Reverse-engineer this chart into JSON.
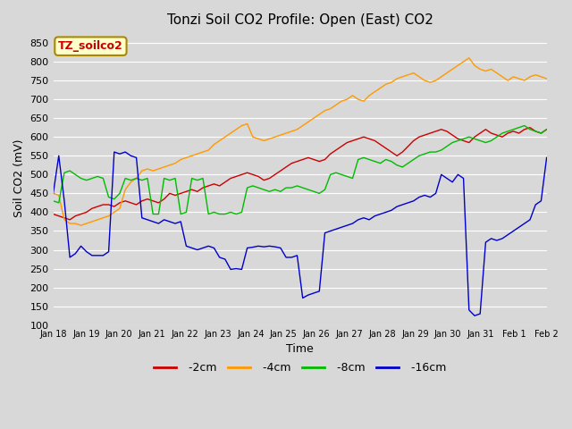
{
  "title": "Tonzi Soil CO2 Profile: Open (East) CO2",
  "xlabel": "Time",
  "ylabel": "Soil CO2 (mV)",
  "ylim": [
    100,
    880
  ],
  "yticks": [
    100,
    150,
    200,
    250,
    300,
    350,
    400,
    450,
    500,
    550,
    600,
    650,
    700,
    750,
    800,
    850
  ],
  "bg_color": "#d8d8d8",
  "plot_bg": "#d8d8d8",
  "grid_color": "#ffffff",
  "line_colors": {
    "-2cm": "#cc0000",
    "-4cm": "#ff9900",
    "-8cm": "#00bb00",
    "-16cm": "#0000cc"
  },
  "legend_label_color": "#cc0000",
  "watermark_text": "TZ_soilco2",
  "watermark_bg": "#ffffcc",
  "watermark_border": "#aa8800",
  "x_labels": [
    "Jan 18",
    "Jan 19",
    "Jan 20",
    "Jan 21",
    "Jan 22",
    "Jan 23",
    "Jan 24",
    "Jan 25",
    "Jan 26",
    "Jan 27",
    "Jan 28",
    "Jan 29",
    "Jan 30",
    "Jan 31",
    "Feb 1",
    "Feb 2"
  ],
  "series_2cm": [
    395,
    390,
    385,
    380,
    390,
    395,
    400,
    410,
    415,
    420,
    420,
    415,
    425,
    430,
    425,
    420,
    430,
    435,
    430,
    425,
    435,
    450,
    445,
    450,
    455,
    460,
    455,
    465,
    470,
    475,
    470,
    480,
    490,
    495,
    500,
    505,
    500,
    495,
    485,
    490,
    500,
    510,
    520,
    530,
    535,
    540,
    545,
    540,
    535,
    540,
    555,
    565,
    575,
    585,
    590,
    595,
    600,
    595,
    590,
    580,
    570,
    560,
    550,
    560,
    575,
    590,
    600,
    605,
    610,
    615,
    620,
    615,
    605,
    595,
    590,
    585,
    600,
    610,
    620,
    610,
    605,
    600,
    610,
    615,
    610,
    620,
    625,
    615,
    610,
    620
  ],
  "series_4cm": [
    450,
    445,
    380,
    370,
    370,
    365,
    370,
    375,
    380,
    385,
    390,
    400,
    410,
    460,
    480,
    490,
    510,
    515,
    510,
    515,
    520,
    525,
    530,
    540,
    545,
    550,
    555,
    560,
    565,
    580,
    590,
    600,
    610,
    620,
    630,
    635,
    600,
    595,
    590,
    595,
    600,
    605,
    610,
    615,
    620,
    630,
    640,
    650,
    660,
    670,
    675,
    685,
    695,
    700,
    710,
    700,
    695,
    710,
    720,
    730,
    740,
    745,
    755,
    760,
    765,
    770,
    760,
    750,
    745,
    750,
    760,
    770,
    780,
    790,
    800,
    810,
    790,
    780,
    775,
    780,
    770,
    760,
    750,
    760,
    755,
    750,
    760,
    765,
    760,
    755
  ],
  "series_8cm": [
    430,
    425,
    505,
    510,
    500,
    490,
    485,
    490,
    495,
    490,
    440,
    435,
    450,
    490,
    485,
    490,
    485,
    490,
    395,
    395,
    490,
    485,
    490,
    395,
    400,
    490,
    485,
    490,
    395,
    400,
    395,
    395,
    400,
    395,
    400,
    465,
    470,
    465,
    460,
    455,
    460,
    455,
    465,
    465,
    470,
    465,
    460,
    455,
    450,
    460,
    500,
    505,
    500,
    495,
    490,
    540,
    545,
    540,
    535,
    530,
    540,
    535,
    525,
    520,
    530,
    540,
    550,
    555,
    560,
    560,
    565,
    575,
    585,
    590,
    595,
    600,
    595,
    590,
    585,
    590,
    600,
    610,
    615,
    620,
    625,
    630,
    620,
    615,
    610,
    620
  ],
  "series_16cm": [
    450,
    550,
    430,
    280,
    290,
    310,
    295,
    285,
    285,
    285,
    295,
    560,
    555,
    560,
    550,
    545,
    385,
    380,
    375,
    370,
    380,
    375,
    370,
    375,
    310,
    305,
    300,
    305,
    310,
    305,
    280,
    275,
    248,
    250,
    248,
    305,
    307,
    310,
    308,
    310,
    308,
    305,
    280,
    280,
    285,
    172,
    180,
    185,
    190,
    345,
    350,
    355,
    360,
    365,
    370,
    380,
    385,
    380,
    390,
    395,
    400,
    405,
    415,
    420,
    425,
    430,
    440,
    445,
    440,
    450,
    500,
    490,
    480,
    500,
    490,
    140,
    125,
    130,
    320,
    330,
    325,
    330,
    340,
    350,
    360,
    370,
    380,
    420,
    430,
    545
  ]
}
